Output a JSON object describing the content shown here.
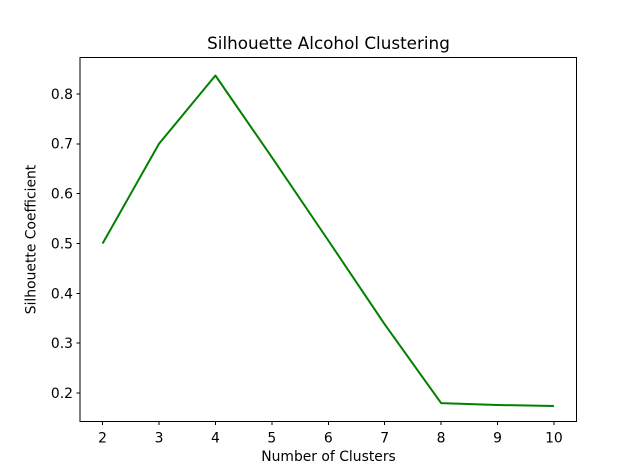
{
  "figure": {
    "background_color": "#ffffff",
    "text_color": "#000000"
  },
  "chart_data": {
    "type": "line",
    "title": "Silhouette Alcohol Clustering",
    "xlabel": "Number of Clusters",
    "ylabel": "Silhouette Coefficient",
    "x": [
      2,
      3,
      4,
      5,
      6,
      7,
      8,
      9,
      10
    ],
    "series": [
      {
        "name": "silhouette-coefficient",
        "values": [
          0.5,
          0.7,
          0.837,
          0.673,
          0.506,
          0.338,
          0.18,
          0.176,
          0.174
        ],
        "color": "#008000"
      }
    ],
    "xlim": [
      1.6,
      10.4
    ],
    "ylim": [
      0.143,
      0.873
    ],
    "x_ticks": [
      "2",
      "3",
      "4",
      "5",
      "6",
      "7",
      "8",
      "9",
      "10"
    ],
    "y_ticks": [
      "0.2",
      "0.3",
      "0.4",
      "0.5",
      "0.6",
      "0.7",
      "0.8"
    ],
    "grid": false,
    "legend_position": "none",
    "axis_color": "#000000"
  }
}
